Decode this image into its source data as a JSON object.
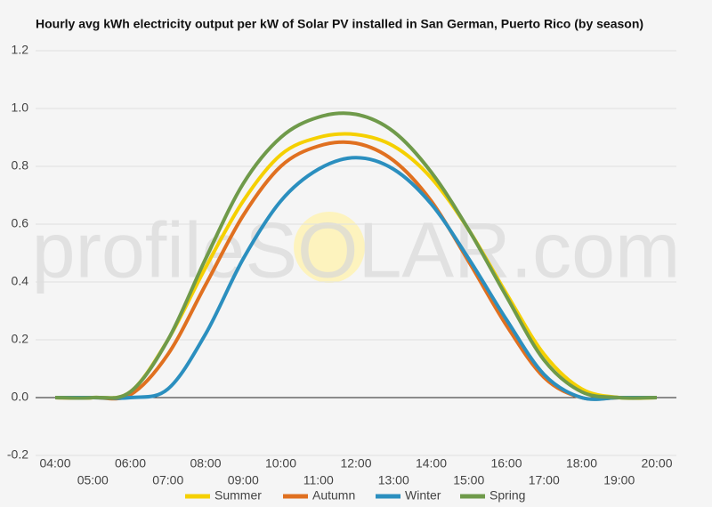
{
  "chart_data": {
    "type": "line",
    "title": "Hourly avg kWh electricity output per kW of Solar PV installed in San German, Puerto Rico (by season)",
    "watermark": "profileSOLAR.com",
    "categories": [
      "04:00",
      "05:00",
      "06:00",
      "07:00",
      "08:00",
      "09:00",
      "10:00",
      "11:00",
      "12:00",
      "13:00",
      "14:00",
      "15:00",
      "16:00",
      "17:00",
      "18:00",
      "19:00",
      "20:00"
    ],
    "series": [
      {
        "name": "Summer",
        "color": "#f5d000",
        "values": [
          0,
          0,
          0.02,
          0.2,
          0.45,
          0.68,
          0.84,
          0.9,
          0.91,
          0.87,
          0.76,
          0.58,
          0.36,
          0.15,
          0.03,
          0,
          0
        ]
      },
      {
        "name": "Autumn",
        "color": "#e07020",
        "values": [
          0,
          0,
          0.01,
          0.15,
          0.39,
          0.63,
          0.8,
          0.87,
          0.88,
          0.82,
          0.68,
          0.47,
          0.25,
          0.07,
          0,
          0,
          0
        ]
      },
      {
        "name": "Winter",
        "color": "#2b8fbf",
        "values": [
          0,
          0,
          0,
          0.03,
          0.22,
          0.48,
          0.68,
          0.79,
          0.83,
          0.79,
          0.67,
          0.48,
          0.27,
          0.08,
          0,
          0,
          0
        ]
      },
      {
        "name": "Spring",
        "color": "#6f9a4a",
        "values": [
          0,
          0,
          0.02,
          0.2,
          0.48,
          0.74,
          0.9,
          0.97,
          0.98,
          0.92,
          0.78,
          0.58,
          0.35,
          0.13,
          0.02,
          0,
          0
        ]
      }
    ],
    "ylim": [
      -0.2,
      1.2
    ],
    "yticks": [
      -0.2,
      {
        "value": 0,
        "label": "0.0"
      },
      0.2,
      0.4,
      0.6,
      0.8,
      {
        "value": 1,
        "label": "1.0"
      },
      1.2
    ],
    "grid": true,
    "legend": "bottom"
  }
}
